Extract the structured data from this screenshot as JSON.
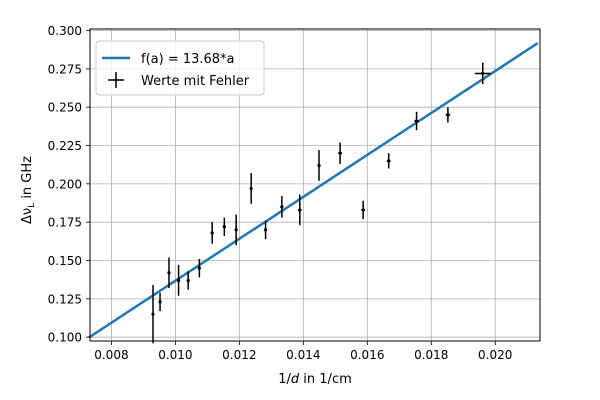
{
  "chart_data": {
    "type": "scatter",
    "xlabel_main": "1/",
    "xlabel_italic": "d",
    "xlabel_rest": " in 1/cm",
    "ylabel_delta": "Δν",
    "ylabel_sub": "L",
    "ylabel_rest": " in GHz",
    "xlim": [
      0.00733,
      0.0214
    ],
    "ylim": [
      0.0975,
      0.301
    ],
    "xticks": [
      0.008,
      0.01,
      0.012,
      0.014,
      0.016,
      0.018,
      0.02
    ],
    "xtick_labels": [
      "0.008",
      "0.010",
      "0.012",
      "0.014",
      "0.016",
      "0.018",
      "0.020"
    ],
    "yticks": [
      0.1,
      0.125,
      0.15,
      0.175,
      0.2,
      0.225,
      0.25,
      0.275,
      0.3
    ],
    "ytick_labels": [
      "0.100",
      "0.125",
      "0.150",
      "0.175",
      "0.200",
      "0.225",
      "0.250",
      "0.275",
      "0.300"
    ],
    "grid": true,
    "legend_position": "top-left",
    "series": [
      {
        "name": "f(a) = 13.68*a",
        "kind": "line",
        "color": "#1f77b4",
        "slope": 13.68,
        "x_range": [
          0.00733,
          0.0213
        ]
      },
      {
        "name": "Werte mit Fehler",
        "kind": "errorbar",
        "color": "#000000",
        "points": [
          {
            "x": 0.0093,
            "y": 0.115,
            "xerr": 2e-05,
            "yerr": 0.019
          },
          {
            "x": 0.00952,
            "y": 0.123,
            "xerr": 3e-05,
            "yerr": 0.006
          },
          {
            "x": 0.0098,
            "y": 0.142,
            "xerr": 3e-05,
            "yerr": 0.01
          },
          {
            "x": 0.0101,
            "y": 0.137,
            "xerr": 3e-05,
            "yerr": 0.01
          },
          {
            "x": 0.0104,
            "y": 0.137,
            "xerr": 3e-05,
            "yerr": 0.006
          },
          {
            "x": 0.01075,
            "y": 0.145,
            "xerr": 3e-05,
            "yerr": 0.006
          },
          {
            "x": 0.01115,
            "y": 0.168,
            "xerr": 4e-05,
            "yerr": 0.007
          },
          {
            "x": 0.01153,
            "y": 0.172,
            "xerr": 4e-05,
            "yerr": 0.006
          },
          {
            "x": 0.0119,
            "y": 0.17,
            "xerr": 4e-05,
            "yerr": 0.01
          },
          {
            "x": 0.01237,
            "y": 0.197,
            "xerr": 4e-05,
            "yerr": 0.01
          },
          {
            "x": 0.01282,
            "y": 0.17,
            "xerr": 4e-05,
            "yerr": 0.006
          },
          {
            "x": 0.01333,
            "y": 0.185,
            "xerr": 5e-05,
            "yerr": 0.007
          },
          {
            "x": 0.01389,
            "y": 0.183,
            "xerr": 5e-05,
            "yerr": 0.01
          },
          {
            "x": 0.01449,
            "y": 0.212,
            "xerr": 5e-05,
            "yerr": 0.01
          },
          {
            "x": 0.01515,
            "y": 0.22,
            "xerr": 6e-05,
            "yerr": 0.007
          },
          {
            "x": 0.01587,
            "y": 0.183,
            "xerr": 6e-05,
            "yerr": 0.006
          },
          {
            "x": 0.01667,
            "y": 0.215,
            "xerr": 6e-05,
            "yerr": 0.005
          },
          {
            "x": 0.01754,
            "y": 0.241,
            "xerr": 7e-05,
            "yerr": 0.006
          },
          {
            "x": 0.01852,
            "y": 0.245,
            "xerr": 7e-05,
            "yerr": 0.005
          },
          {
            "x": 0.01961,
            "y": 0.272,
            "xerr": 0.00025,
            "yerr": 0.007
          }
        ]
      }
    ]
  }
}
